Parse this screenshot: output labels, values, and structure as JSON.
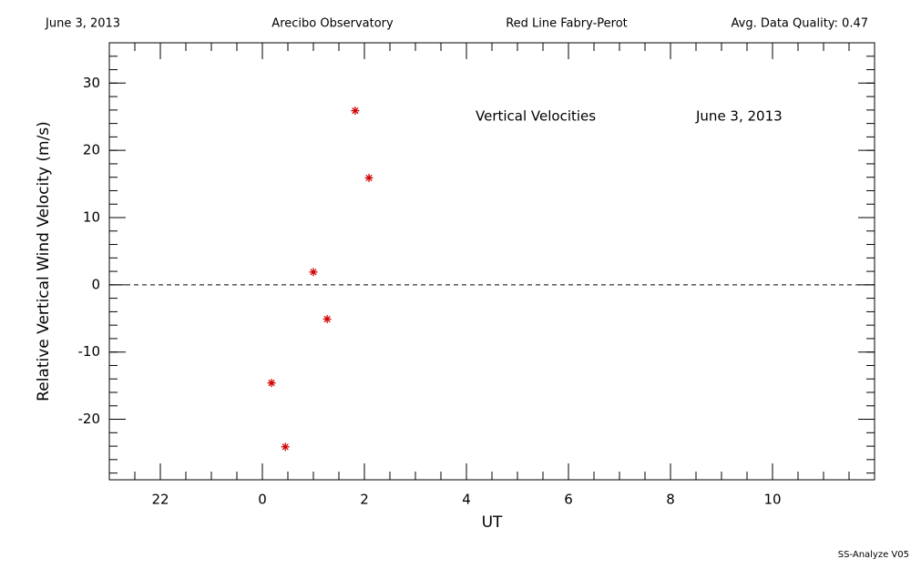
{
  "chart_data": {
    "type": "scatter",
    "header": [
      "June 3, 2013",
      "Arecibo Observatory",
      "Red Line Fabry-Perot",
      "Avg. Data Quality: 0.47"
    ],
    "annotations": [
      "Vertical Velocities",
      "June 3, 2013"
    ],
    "footer": "SS-Analyze V05",
    "xlabel": "UT",
    "ylabel": "Relative Vertical Wind Velocity (m/s)",
    "x": [
      1.82,
      2.09,
      1.0,
      1.27,
      0.18,
      0.45
    ],
    "values": [
      25.9,
      15.9,
      1.9,
      -5.1,
      -14.6,
      -24.1
    ],
    "color": "#d00000",
    "xlim": [
      -3,
      12
    ],
    "xticks": [
      {
        "value": -2,
        "label": "22"
      },
      0,
      2,
      4,
      6,
      8,
      10
    ],
    "ylim": [
      -29,
      36
    ],
    "yticks": [
      -20,
      -10,
      0,
      10,
      20,
      30
    ],
    "reference_line": 0
  }
}
